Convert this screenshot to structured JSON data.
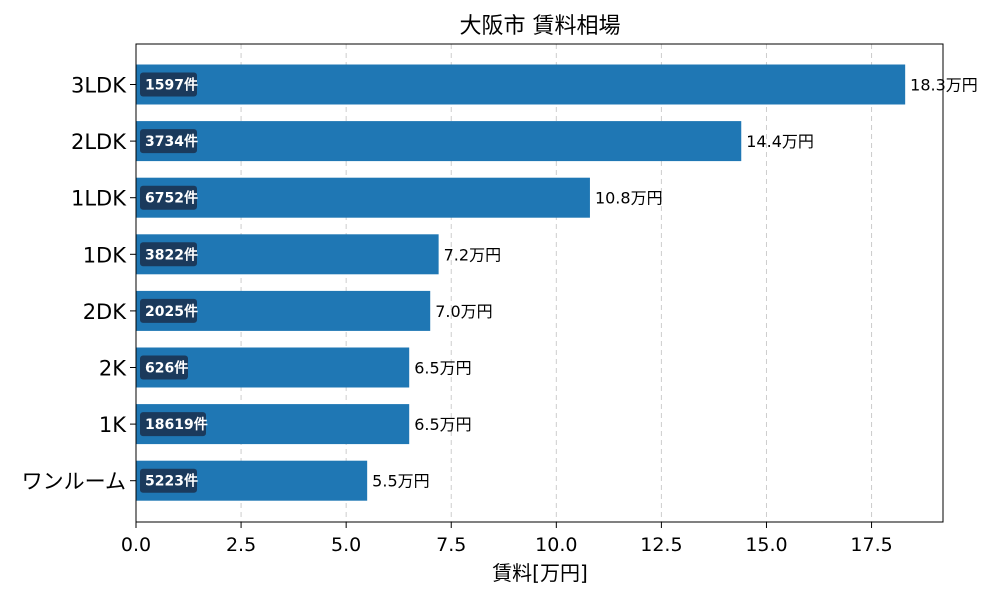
{
  "chart_data": {
    "type": "bar",
    "orientation": "horizontal",
    "title": "大阪市 賃料相場",
    "xlabel": "賃料[万円]",
    "ylabel": "",
    "categories": [
      "3LDK",
      "2LDK",
      "1LDK",
      "1DK",
      "2DK",
      "2K",
      "1K",
      "ワンルーム"
    ],
    "values": [
      18.3,
      14.4,
      10.8,
      7.2,
      7.0,
      6.5,
      6.5,
      5.5
    ],
    "value_labels": [
      "18.3万円",
      "14.4万円",
      "10.8万円",
      "7.2万円",
      "7.0万円",
      "6.5万円",
      "6.5万円",
      "5.5万円"
    ],
    "counts": [
      "1597件",
      "3734件",
      "6752件",
      "3822件",
      "2025件",
      "626件",
      "18619件",
      "5223件"
    ],
    "xlim": [
      0,
      19.2
    ],
    "xticks": [
      0.0,
      2.5,
      5.0,
      7.5,
      10.0,
      12.5,
      15.0,
      17.5
    ],
    "xtick_labels": [
      "0.0",
      "2.5",
      "5.0",
      "7.5",
      "10.0",
      "12.5",
      "15.0",
      "17.5"
    ],
    "grid": "x-dashed",
    "colors": {
      "bar": "#1f77b4",
      "count_box": "#1b3a5c",
      "grid": "#cccccc"
    }
  }
}
